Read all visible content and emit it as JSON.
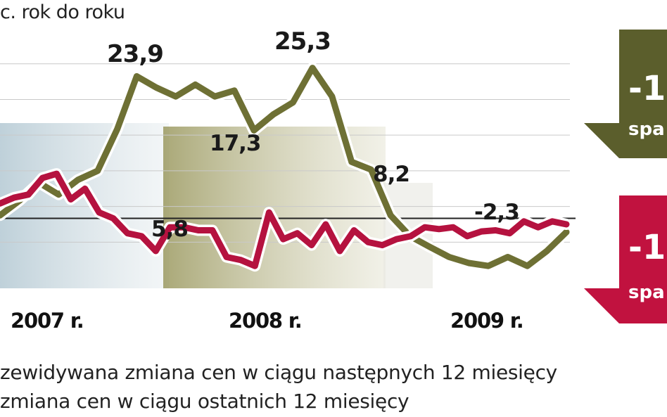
{
  "chart_data": {
    "type": "line",
    "unit_label": "c. rok do roku",
    "years": [
      "2007 r.",
      "2008 r.",
      "2009 r."
    ],
    "ylim": [
      -12,
      32
    ],
    "baseline": 0,
    "series": [
      {
        "name": "zewidywana zmiana cen w ciągu następnych 12 miesięcy",
        "color": "#6e7034",
        "values": [
          0.5,
          3.0,
          6.0,
          4.0,
          6.5,
          8.0,
          15.0,
          23.9,
          22.0,
          20.5,
          22.5,
          20.5,
          21.5,
          14.8,
          17.5,
          19.5,
          25.3,
          20.5,
          9.5,
          8.2,
          0.5,
          -3.0,
          -4.8,
          -6.5,
          -7.5,
          -8.0,
          -6.5,
          -8.0,
          -5.5,
          -2.3
        ]
      },
      {
        "name": "zmiana cen w ciągu ostatnich 12 miesięcy",
        "color": "#b5123f",
        "values": [
          2.5,
          3.5,
          4.0,
          6.8,
          7.5,
          3.2,
          5.0,
          1.0,
          0.0,
          -2.5,
          -3.0,
          -5.5,
          -1.5,
          -1.5,
          -2.0,
          -2.0,
          -6.5,
          -7.0,
          -8.0,
          1.0,
          -3.5,
          -2.5,
          -4.5,
          -1.0,
          -5.5,
          -2.0,
          -4.0,
          -4.5,
          -3.5,
          -3.0,
          -1.5,
          -1.8,
          -1.5,
          -3.0,
          -2.2,
          -2.0,
          -2.5,
          -0.5,
          -1.5,
          -0.5,
          -1.0
        ]
      }
    ],
    "annotations": [
      {
        "text": "23,9"
      },
      {
        "text": "25,3"
      },
      {
        "text": "17,3"
      },
      {
        "text": "8,2"
      },
      {
        "text": "5,8"
      },
      {
        "text": "-2,3"
      }
    ],
    "callouts": [
      {
        "text": "-1",
        "subtext": "spa",
        "color": "#5b5e2c"
      },
      {
        "text": "-1",
        "subtext": "spa",
        "color": "#c1123f"
      }
    ],
    "legend": [
      "zewidywana zmiana cen w ciągu następnych 12 miesięcy",
      "zmiana cen w ciągu ostatnich 12 miesięcy"
    ]
  }
}
